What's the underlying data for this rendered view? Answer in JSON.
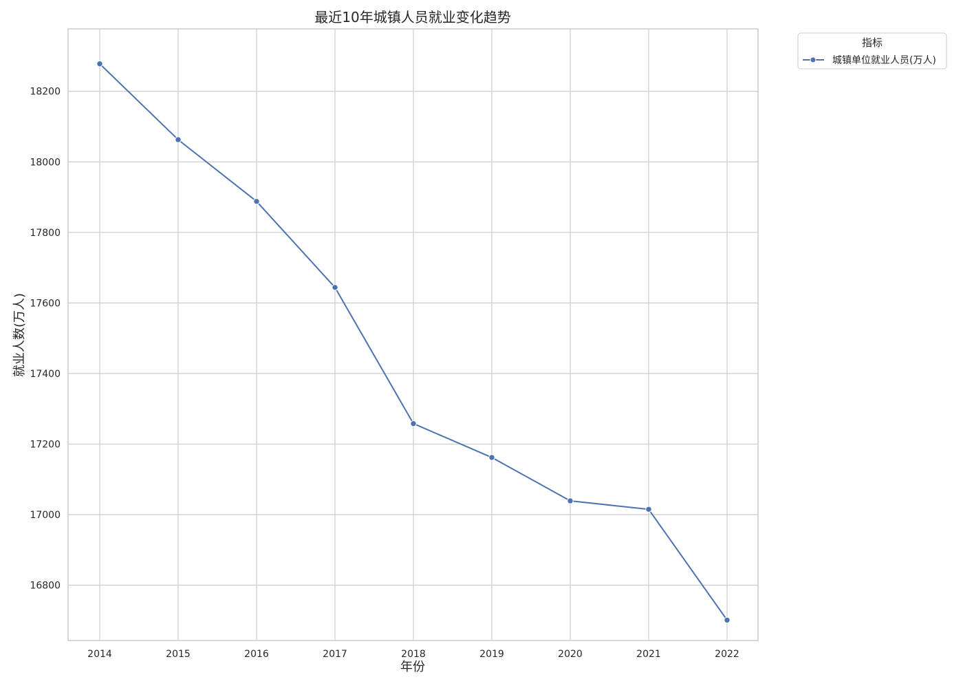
{
  "chart_data": {
    "type": "line",
    "title": "最近10年城镇人员就业变化趋势",
    "xlabel": "年份",
    "ylabel": "就业人数(万人)",
    "x": [
      2014,
      2015,
      2016,
      2017,
      2018,
      2019,
      2020,
      2021,
      2022
    ],
    "y_ticks": [
      16800,
      17000,
      17200,
      17400,
      17600,
      17800,
      18000,
      18200
    ],
    "ylim": [
      16643,
      18377
    ],
    "grid": true,
    "legend": {
      "title": "指标",
      "placement": "outside-top-right"
    },
    "series": [
      {
        "name": "城镇单位就业人员(万人)",
        "color": "#4c72b0",
        "values": [
          18278,
          18063,
          17888,
          17644,
          17258,
          17162,
          17039,
          17015,
          16701
        ]
      }
    ]
  }
}
